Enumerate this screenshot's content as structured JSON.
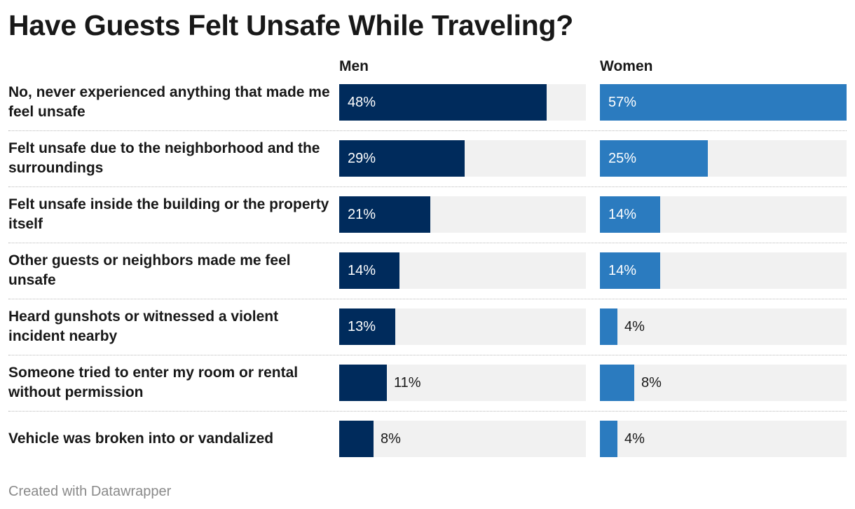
{
  "chart_data": {
    "type": "bar",
    "title": "Have Guests Felt Unsafe While Traveling?",
    "xlabel": "",
    "ylabel": "",
    "ylim": [
      0,
      57
    ],
    "categories": [
      "No, never experienced anything that made me feel unsafe",
      "Felt unsafe due to the neighborhood and the surroundings",
      "Felt unsafe inside the building or the property itself",
      "Other guests or neighbors made me feel unsafe",
      "Heard gunshots or witnessed a violent incident nearby",
      "Someone tried to enter my room or rental without permission",
      "Vehicle was broken into or vandalized"
    ],
    "series": [
      {
        "name": "Men",
        "color": "#002b5c",
        "values": [
          48,
          29,
          21,
          14,
          13,
          11,
          8
        ]
      },
      {
        "name": "Women",
        "color": "#2b7bbf",
        "values": [
          57,
          25,
          14,
          14,
          4,
          8,
          4
        ]
      }
    ],
    "value_suffix": "%"
  },
  "footer": "Created with Datawrapper"
}
